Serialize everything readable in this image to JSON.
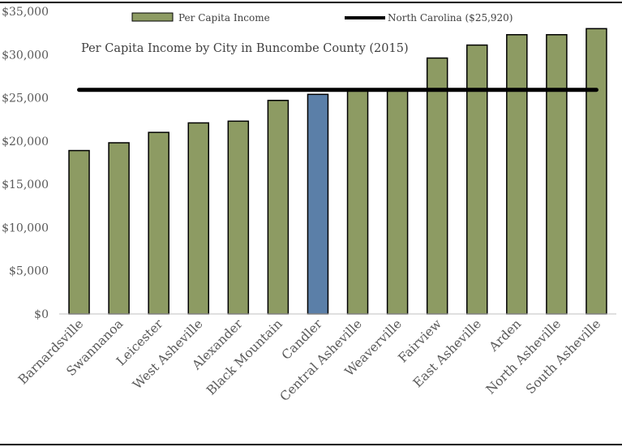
{
  "chart_data": {
    "type": "bar",
    "title": "Per Capita Income by City in Buncombe County (2015)",
    "xlabel": "",
    "ylabel": "",
    "ylim": [
      0,
      35000
    ],
    "y_ticks": [
      "$0",
      "$5,000",
      "$10,000",
      "$15,000",
      "$20,000",
      "$25,000",
      "$30,000",
      "$35,000"
    ],
    "y_tick_values": [
      0,
      5000,
      10000,
      15000,
      20000,
      25000,
      30000,
      35000
    ],
    "grid": false,
    "legend_placement": "top",
    "categories": [
      "Barnardsville",
      "Swannanoa",
      "Leicester",
      "West Asheville",
      "Alexander",
      "Black Mountain",
      "Candler",
      "Central Asheville",
      "Weaverville",
      "Fairview",
      "East Asheville",
      "Arden",
      "North Asheville",
      "South Asheville"
    ],
    "series": [
      {
        "name": "Per Capita Income",
        "values": [
          18900,
          19800,
          21000,
          22100,
          22300,
          24700,
          25400,
          25800,
          25800,
          29600,
          31100,
          32300,
          32300,
          33000
        ],
        "highlight_index": 6
      }
    ],
    "reference_line": {
      "name": "North Carolina ($25,920)",
      "value": 25920
    },
    "colors": {
      "bar": "#8d9b63",
      "highlight": "#5b7fa8",
      "bar_border": "#000000",
      "reference_line": "#000000"
    }
  }
}
